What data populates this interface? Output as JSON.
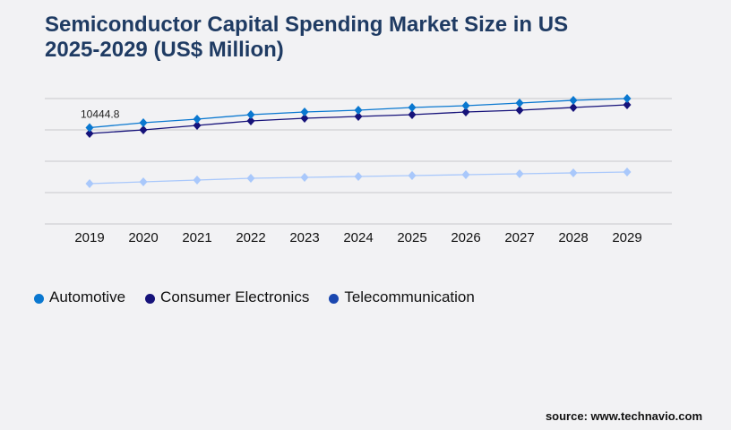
{
  "chart_data": {
    "type": "line",
    "title": "Semiconductor Capital Spending Market Size in US 2025-2029 (US$ Million)",
    "title_lines": [
      "Semiconductor Capital Spending Market Size in US",
      "2025-2029 (US$ Million)"
    ],
    "x": [
      "2019",
      "2020",
      "2021",
      "2022",
      "2023",
      "2024",
      "2025",
      "2026",
      "2027",
      "2028",
      "2029"
    ],
    "ylim": [
      0,
      13600
    ],
    "grid": true,
    "gridlines": 5,
    "legend_placement": "bottom-left",
    "annotation": "10444.8",
    "series": [
      {
        "name": "Automotive",
        "color": "#0a78d0",
        "legend_color": "#0a78d0",
        "values": [
          10444.8,
          10977,
          11366,
          11851,
          12143,
          12337,
          12629,
          12823,
          13114,
          13406,
          13600
        ]
      },
      {
        "name": "Consumer Electronics",
        "color": "#16127a",
        "legend_color": "#16127a",
        "values": [
          9811,
          10200,
          10686,
          11171,
          11463,
          11657,
          11851,
          12143,
          12337,
          12629,
          12920
        ]
      },
      {
        "name": "Telecommunication",
        "color": "#a9c8fb",
        "legend_color": "#1a47b0",
        "values": [
          4371,
          4566,
          4760,
          4954,
          5051,
          5149,
          5246,
          5343,
          5440,
          5537,
          5634
        ]
      }
    ]
  },
  "source": "source: www.technavio.com"
}
